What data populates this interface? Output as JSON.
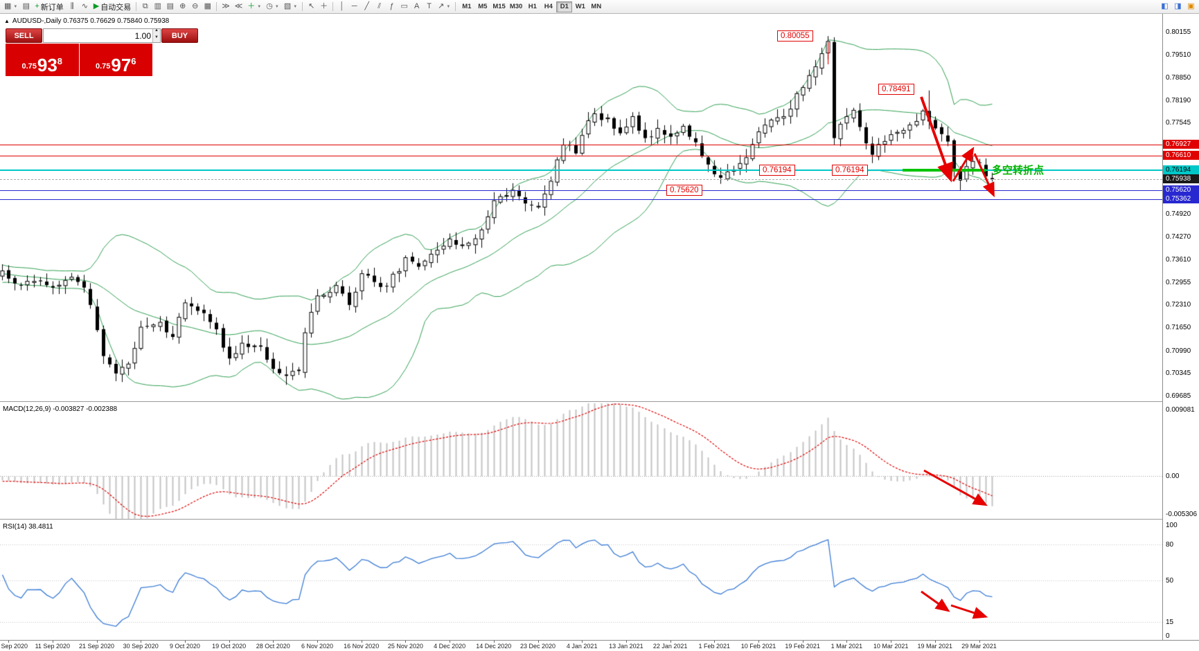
{
  "toolbar": {
    "new_order_label": "新订单",
    "auto_trading_label": "自动交易",
    "timeframes": [
      "M1",
      "M5",
      "M15",
      "M30",
      "H1",
      "H4",
      "D1",
      "W1",
      "MN"
    ],
    "active_timeframe": "D1"
  },
  "chart_header": {
    "symbol_line": "AUDUSD-,Daily 0.76375 0.76629 0.75840 0.75938"
  },
  "trade_panel": {
    "sell_label": "SELL",
    "buy_label": "BUY",
    "volume": "1.00",
    "sell_price": {
      "prefix": "0.75",
      "big": "93",
      "sup": "8"
    },
    "buy_price": {
      "prefix": "0.75",
      "big": "97",
      "sup": "6"
    }
  },
  "price_axis": {
    "regular_labels": [
      "0.80155",
      "0.79510",
      "0.78850",
      "0.78190",
      "0.77545",
      "0.74920",
      "0.74270",
      "0.73610",
      "0.72955",
      "0.72310",
      "0.71650",
      "0.70990",
      "0.70345",
      "0.69685"
    ],
    "badges": [
      {
        "text": "0.76927",
        "bg": "#e00000",
        "fg": "#ffffff"
      },
      {
        "text": "0.76610",
        "bg": "#e00000",
        "fg": "#ffffff"
      },
      {
        "text": "0.76194",
        "bg": "#00c8c8",
        "fg": "#000000"
      },
      {
        "text": "0.75938",
        "bg": "#1a1a1a",
        "fg": "#ffffff"
      },
      {
        "text": "0.75620",
        "bg": "#2828d0",
        "fg": "#ffffff"
      },
      {
        "text": "0.75362",
        "bg": "#2828d0",
        "fg": "#ffffff"
      }
    ]
  },
  "levels": [
    {
      "price": 0.76927,
      "color": "#e00000",
      "style": "solid",
      "width": 1
    },
    {
      "price": 0.7661,
      "color": "#e00000",
      "style": "solid",
      "width": 1
    },
    {
      "price": 0.76194,
      "color": "#00c8c8",
      "style": "solid",
      "width": 2
    },
    {
      "price": 0.75938,
      "color": "#aaaaaa",
      "style": "dashed",
      "width": 1
    },
    {
      "price": 0.7562,
      "color": "#2828d0",
      "style": "solid",
      "width": 1
    },
    {
      "price": 0.75362,
      "color": "#2828d0",
      "style": "solid",
      "width": 1
    }
  ],
  "callouts": [
    "0.80055",
    "0.78491",
    "0.76194",
    "0.76194",
    "0.75620"
  ],
  "annotations": {
    "turning_point_label": "多空转折点"
  },
  "macd": {
    "label": "MACD(12,26,9) -0.003827 -0.002388",
    "axis_labels": [
      "0.009081",
      "0.00",
      "-0.005306"
    ]
  },
  "rsi": {
    "label": "RSI(14) 38.4811",
    "axis_labels": [
      "100",
      "80",
      "50",
      "15",
      "0"
    ]
  },
  "date_axis": [
    "2 Sep 2020",
    "11 Sep 2020",
    "21 Sep 2020",
    "30 Sep 2020",
    "9 Oct 2020",
    "19 Oct 2020",
    "28 Oct 2020",
    "6 Nov 2020",
    "16 Nov 2020",
    "25 Nov 2020",
    "4 Dec 2020",
    "14 Dec 2020",
    "23 Dec 2020",
    "4 Jan 2021",
    "13 Jan 2021",
    "22 Jan 2021",
    "1 Feb 2021",
    "10 Feb 2021",
    "19 Feb 2021",
    "1 Mar 2021",
    "10 Mar 2021",
    "19 Mar 2021",
    "29 Mar 2021"
  ],
  "chart_data": {
    "type": "candlestick",
    "symbol": "AUDUSD",
    "period": "Daily",
    "ohlc_current": {
      "open": 0.76375,
      "high": 0.76629,
      "low": 0.7584,
      "close": 0.75938
    },
    "bid": 0.75938,
    "ask": 0.75976,
    "bars": 158,
    "y_axis_range": [
      0.6955,
      0.8073
    ],
    "x_first_date": "2 Sep 2020",
    "x_last_date": "29 Mar 2021",
    "seed": 1337,
    "price_path": [
      [
        0,
        0.733
      ],
      [
        3,
        0.7288
      ],
      [
        6,
        0.73
      ],
      [
        8,
        0.7282
      ],
      [
        11,
        0.7312
      ],
      [
        13,
        0.7282
      ],
      [
        14,
        0.7232
      ],
      [
        16,
        0.7085
      ],
      [
        18,
        0.7035
      ],
      [
        20,
        0.7062
      ],
      [
        22,
        0.7168
      ],
      [
        25,
        0.7182
      ],
      [
        27,
        0.714
      ],
      [
        29,
        0.7238
      ],
      [
        31,
        0.7215
      ],
      [
        34,
        0.7162
      ],
      [
        36,
        0.7078
      ],
      [
        38,
        0.7122
      ],
      [
        41,
        0.7112
      ],
      [
        43,
        0.7048
      ],
      [
        45,
        0.7028
      ],
      [
        47,
        0.7042
      ],
      [
        48,
        0.7152
      ],
      [
        50,
        0.7258
      ],
      [
        53,
        0.7288
      ],
      [
        55,
        0.7232
      ],
      [
        57,
        0.7322
      ],
      [
        59,
        0.7298
      ],
      [
        61,
        0.7285
      ],
      [
        64,
        0.7368
      ],
      [
        66,
        0.7342
      ],
      [
        68,
        0.7378
      ],
      [
        71,
        0.7422
      ],
      [
        74,
        0.741
      ],
      [
        76,
        0.7448
      ],
      [
        78,
        0.7532
      ],
      [
        81,
        0.7562
      ],
      [
        83,
        0.7524
      ],
      [
        85,
        0.7516
      ],
      [
        87,
        0.7588
      ],
      [
        89,
        0.7692
      ],
      [
        91,
        0.7668
      ],
      [
        93,
        0.7762
      ],
      [
        94,
        0.7782
      ],
      [
        96,
        0.777
      ],
      [
        98,
        0.7726
      ],
      [
        100,
        0.7774
      ],
      [
        102,
        0.7712
      ],
      [
        104,
        0.774
      ],
      [
        106,
        0.7716
      ],
      [
        108,
        0.7746
      ],
      [
        110,
        0.77
      ],
      [
        112,
        0.7636
      ],
      [
        114,
        0.7598
      ],
      [
        116,
        0.762
      ],
      [
        118,
        0.7656
      ],
      [
        120,
        0.773
      ],
      [
        122,
        0.7764
      ],
      [
        124,
        0.7774
      ],
      [
        126,
        0.784
      ],
      [
        128,
        0.7892
      ],
      [
        130,
        0.7955
      ],
      [
        131,
        0.799
      ],
      [
        132,
        0.7712
      ],
      [
        134,
        0.7774
      ],
      [
        135,
        0.7792
      ],
      [
        136,
        0.7744
      ],
      [
        138,
        0.7664
      ],
      [
        139,
        0.7694
      ],
      [
        141,
        0.7722
      ],
      [
        143,
        0.7734
      ],
      [
        145,
        0.776
      ],
      [
        146,
        0.779
      ],
      [
        147,
        0.776
      ],
      [
        148,
        0.774
      ],
      [
        150,
        0.7702
      ],
      [
        151,
        0.7624
      ],
      [
        152,
        0.759
      ],
      [
        153,
        0.763
      ],
      [
        154,
        0.7645
      ],
      [
        155,
        0.764
      ],
      [
        156,
        0.7602
      ],
      [
        157,
        0.75938
      ]
    ],
    "anchors": [
      {
        "bar": 131,
        "high": 0.80055
      },
      {
        "bar": 147,
        "high": 0.78491
      },
      {
        "bar": 152,
        "low": 0.7562
      },
      {
        "bar": 157,
        "close": 0.75938
      }
    ],
    "overlays": {
      "bollinger": {
        "period": 20,
        "deviation": 2,
        "color": "#2e9e50"
      }
    },
    "indicators": [
      {
        "name": "MACD",
        "params": [
          12,
          26,
          9
        ],
        "current": [
          -0.003827,
          -0.002388
        ],
        "range": [
          -0.005306,
          0.009081
        ],
        "histogram_color": "#c4c4c4",
        "signal_color": "#e00000"
      },
      {
        "name": "RSI",
        "params": [
          14
        ],
        "current": 38.4811,
        "range": [
          0,
          100
        ],
        "line_color": "#3a7bd5"
      }
    ]
  }
}
